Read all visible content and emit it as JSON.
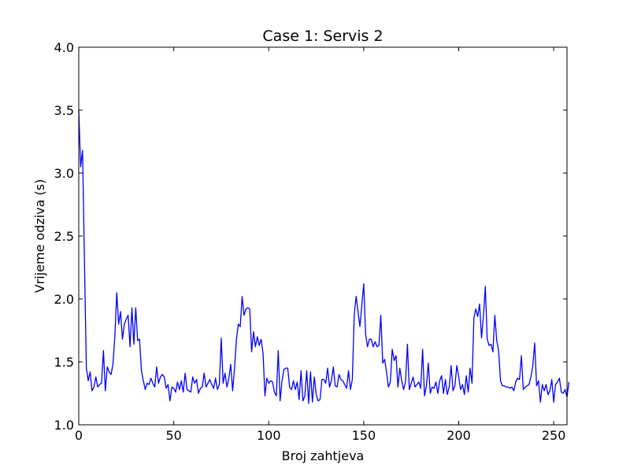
{
  "colors": {
    "line": "#0000ff",
    "axes": "#000000",
    "background": "#ffffff"
  },
  "chart_data": {
    "type": "line",
    "title": "Case 1: Servis 2",
    "xlabel": "Broj zahtjeva",
    "ylabel": "Vrijeme odziva (s)",
    "xlim": [
      0,
      257
    ],
    "ylim": [
      1.0,
      4.0
    ],
    "xticks": [
      0,
      50,
      100,
      150,
      200,
      250
    ],
    "yticks": [
      1.0,
      1.5,
      2.0,
      2.5,
      3.0,
      3.5,
      4.0
    ],
    "xtick_labels": [
      "0",
      "50",
      "100",
      "150",
      "200",
      "250"
    ],
    "ytick_labels": [
      "1.0",
      "1.5",
      "2.0",
      "2.5",
      "3.0",
      "3.5",
      "4.0"
    ],
    "grid": false,
    "legend": false,
    "series": [
      {
        "x_start": 0,
        "values": [
          3.5,
          3.05,
          3.18,
          2.3,
          1.45,
          1.35,
          1.42,
          1.27,
          1.3,
          1.38,
          1.3,
          1.32,
          1.33,
          1.59,
          1.27,
          1.46,
          1.42,
          1.4,
          1.48,
          1.7,
          2.05,
          1.8,
          1.9,
          1.68,
          1.8,
          1.84,
          1.87,
          1.62,
          1.93,
          1.64,
          1.93,
          1.67,
          1.68,
          1.43,
          1.35,
          1.28,
          1.33,
          1.32,
          1.37,
          1.33,
          1.3,
          1.46,
          1.33,
          1.38,
          1.4,
          1.38,
          1.29,
          1.32,
          1.19,
          1.3,
          1.29,
          1.26,
          1.34,
          1.28,
          1.35,
          1.26,
          1.41,
          1.28,
          1.27,
          1.26,
          1.38,
          1.33,
          1.36,
          1.25,
          1.29,
          1.3,
          1.41,
          1.3,
          1.33,
          1.36,
          1.32,
          1.29,
          1.37,
          1.28,
          1.32,
          1.69,
          1.33,
          1.41,
          1.3,
          1.37,
          1.48,
          1.27,
          1.45,
          1.68,
          1.8,
          1.78,
          2.02,
          1.87,
          1.92,
          1.93,
          1.92,
          1.58,
          1.74,
          1.62,
          1.7,
          1.63,
          1.68,
          1.57,
          1.23,
          1.37,
          1.33,
          1.35,
          1.34,
          1.26,
          1.23,
          1.59,
          1.19,
          1.35,
          1.44,
          1.45,
          1.45,
          1.3,
          1.28,
          1.35,
          1.28,
          1.34,
          1.2,
          1.43,
          1.19,
          1.23,
          1.43,
          1.17,
          1.42,
          1.18,
          1.38,
          1.24,
          1.19,
          1.2,
          1.36,
          1.36,
          1.33,
          1.45,
          1.3,
          1.35,
          1.46,
          1.31,
          1.3,
          1.4,
          1.36,
          1.35,
          1.32,
          1.29,
          1.43,
          1.28,
          1.36,
          1.87,
          2.02,
          1.9,
          1.78,
          1.95,
          2.12,
          1.72,
          1.62,
          1.68,
          1.68,
          1.62,
          1.66,
          1.62,
          1.63,
          1.87,
          1.49,
          1.52,
          1.42,
          1.3,
          1.34,
          1.6,
          1.51,
          1.55,
          1.3,
          1.45,
          1.35,
          1.28,
          1.34,
          1.64,
          1.28,
          1.33,
          1.38,
          1.3,
          1.32,
          1.34,
          1.29,
          1.6,
          1.23,
          1.31,
          1.49,
          1.25,
          1.3,
          1.29,
          1.34,
          1.25,
          1.35,
          1.39,
          1.25,
          1.36,
          1.24,
          1.3,
          1.47,
          1.27,
          1.31,
          1.47,
          1.38,
          1.28,
          1.32,
          1.24,
          1.39,
          1.26,
          1.45,
          1.33,
          1.85,
          1.92,
          1.86,
          1.96,
          1.69,
          1.86,
          2.1,
          1.68,
          1.63,
          1.64,
          1.58,
          1.87,
          1.67,
          1.59,
          1.35,
          1.31,
          1.31,
          1.3,
          1.3,
          1.29,
          1.3,
          1.27,
          1.34,
          1.37,
          1.36,
          1.55,
          1.28,
          1.3,
          1.31,
          1.32,
          1.38,
          1.47,
          1.65,
          1.31,
          1.35,
          1.18,
          1.32,
          1.27,
          1.32,
          1.24,
          1.27,
          1.36,
          1.18,
          1.32,
          1.34,
          1.37,
          1.26,
          1.25,
          1.28,
          1.22,
          1.34
        ]
      }
    ]
  }
}
